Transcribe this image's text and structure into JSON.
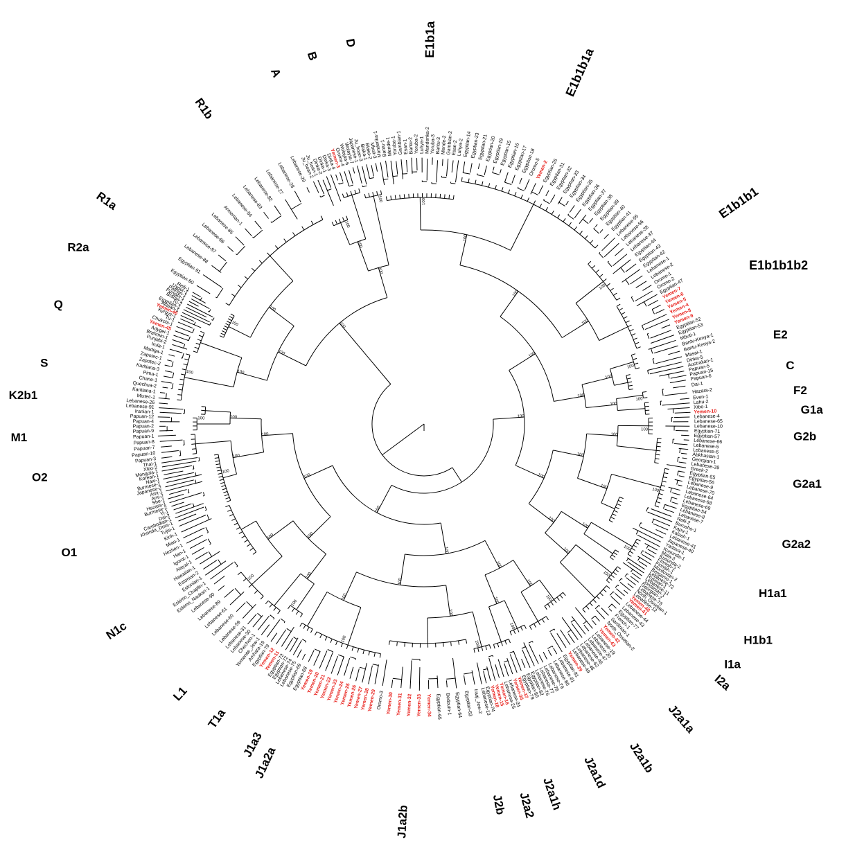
{
  "diagram": {
    "type": "circular-phylogenetic-tree",
    "highlight_color": "#e8211c",
    "line_color": "#000000",
    "haplogroups": [
      "E1b1a",
      "E1b1b1a",
      "E1b1b1",
      "E1b1b1b2",
      "E2",
      "C",
      "F2",
      "G1a",
      "G2b",
      "G2a1",
      "G2a2",
      "H1a1",
      "H1b1",
      "I1a",
      "I2a",
      "J2a1a",
      "J2a1b",
      "J2a1d",
      "J2a1h",
      "J2a2",
      "J2b",
      "J1a2b",
      "J1a2a",
      "J1a3",
      "T1a",
      "L1",
      "N1c",
      "O1",
      "O2",
      "M1",
      "K2b1",
      "S",
      "Q",
      "R2a",
      "R1a",
      "R1b",
      "A",
      "B",
      "D"
    ],
    "support_value": "100",
    "leaves": {
      "A": [
        "Ju_hoan-2",
        "Ju_hoan-1",
        "Dinka-2",
        "Dinka-1",
        "Dinka-3"
      ],
      "B": [
        "Dinka-4",
        "Yemen-3",
        "Oromo-4",
        "Wolayta-6",
        "Wolayta-7"
      ],
      "D": [
        "Japanese-1",
        "Ju_hoan-3",
        "Biaka-1",
        "Biaka-2",
        "Mbuti-3"
      ],
      "E1b1a": [
        "Mandenka-1",
        "Bantu-1",
        "Mende-1",
        "Yoruba-1",
        "Gambian-1",
        "Esan-1",
        "Bantu-2",
        "Yoruba-2",
        "Luhya-1",
        "Mandenka-2",
        "Yoruba-3",
        "Bantu-3",
        "Mende-2",
        "Gambian-2",
        "Esan-2",
        "Luhya-2"
      ],
      "E1b1b1a": [
        "Egyptian-14",
        "Egyptian-23",
        "Egyptian-21",
        "Egyptian-20",
        "Egyptian-19",
        "Egyptian-15",
        "Egyptian-16",
        "Egyptian-17",
        "Egyptian-18",
        "Oromo-5",
        "Yemen-2",
        "Egyptian-26",
        "Egyptian-31",
        "Egyptian-32",
        "Egyptian-33",
        "Egyptian-34",
        "Egyptian-35",
        "Egyptian-36",
        "Egyptian-37",
        "Egyptian-38",
        "Egyptian-39",
        "Egyptian-40",
        "Egyptian-41"
      ],
      "E1b1b1": [
        "Lebanese-55",
        "Lebanese-56",
        "Lebanese-38",
        "Lebanese-37",
        "Egyptian-44",
        "Egyptian-43",
        "Egyptian-42",
        "Lebanese-1",
        "Lebanese-2"
      ],
      "E1b1b1b2": [
        "Oromo-1",
        "Oromo-2",
        "Egyptian-47",
        "Yemen-7",
        "Yemen-6",
        "Yemen-5",
        "Yemen-4",
        "Yemen-8",
        "Yemen-9",
        "Egyptian-52",
        "Egyptian-53"
      ],
      "E2": [
        "Mbuti-1",
        "Bantu-Kenya-1",
        "Bantu-Kenya-2",
        "Masai-1"
      ],
      "C": [
        "Dinka-5",
        "Australian-1",
        "Papuan-5",
        "Papuan-15",
        "Papuan-6"
      ],
      "F2": [
        "Dai-1",
        "Hazara-2"
      ],
      "G1a": [
        "Even-1",
        "Lahu-2",
        "Xibo-1",
        "Yemen-10"
      ],
      "G2b": [
        "Lebanese-4",
        "Lebanese-65",
        "Lebanese-10",
        "Egyptian-71",
        "Egyptian-57"
      ],
      "G2a1": [
        "Lebanese-66",
        "Lebanese-5",
        "Lebanese-6",
        "Abkhasian-1",
        "Georgian-1",
        "Lebanese-39",
        "Greek-2"
      ],
      "G2a2": [
        "Egyptian-55",
        "Egyptian-56",
        "Lebanese-9",
        "Lebanese-70",
        "Lebanese-64",
        "Lebanese-68",
        "Lebanese-69",
        "Egyptian-54",
        "Lebanese-8",
        "Lebanese-7"
      ],
      "H1a1": [
        "Relli-2",
        "Burusho-1",
        "Kapu-1",
        "Kalash-1",
        "Lebanese-41",
        "Japanese-40",
        "Yadava-1",
        "Kusunda-1"
      ],
      "H1b1": [
        "Mala-3",
        "Kusunda-2",
        "Finnish-2",
        "Finnish-1",
        "Mordovian-2",
        "Bergamo-1"
      ],
      "I1a": [
        "Lebanese-72",
        "Russian-1",
        "Lebanese-11",
        "Jordanian-1"
      ],
      "I2a": [
        "Georgian-2",
        "Lebanese-73",
        "North_Ossetian-1",
        "Lebanese-12",
        "Yemen-40",
        "Yemen-41"
      ],
      "J2a1a": [
        "Lebanese-44",
        "Lebanese-43",
        "Egyptian-77",
        "French-1",
        "Sardinian-1",
        "North_Ossetian-2",
        "Yemen-42",
        "Yemen-43"
      ],
      "J2a1b": [
        "Lebanese-19",
        "Lebanese-20",
        "Lebanese-47",
        "Lebanese-46",
        "Lebanese-62",
        "Lebanese-48",
        "Lebanese-49"
      ],
      "J2a1d": [
        "Yemen-39",
        "Egyptian-81",
        "Lebanese-81",
        "Lebanese-80",
        "Lebanese-79"
      ],
      "J2a1h": [
        "Lebanese-78",
        "Lebanese-77",
        "Lebanese-76",
        "Egyptian-82",
        "Egyptian-80"
      ],
      "J2a2": [
        "Egyptian-79",
        "Yemen-37",
        "Yemen-36",
        "Lebanese-24",
        "Lebanese-25"
      ],
      "J2b": [
        "Yemen-16",
        "Yemen-15",
        "Yemen-18",
        "Egyptian-74",
        "Lebanese-13"
      ],
      "J1a2b": [
        "Iraqi_Jew-2",
        "Egyptian-63",
        "Egyptian-64",
        "Bedouin-1",
        "Egyptian-65",
        "Yemen-34",
        "Yemen-33",
        "Yemen-32",
        "Yemen-31",
        "Yemen-30",
        "Oromo-3"
      ],
      "J1a2a": [
        "Yemen-29",
        "Yemen-28",
        "Yemen-27",
        "Yemen-26",
        "Yemen-25",
        "Yemen-24",
        "Yemen-23",
        "Yemen-22",
        "Yemen-21",
        "Yemen-20",
        "Yemen-19",
        "Egyptian-68",
        "Egyptian-69"
      ],
      "J1a3": [
        "Lebanese-75",
        "Lebanese-74",
        "Egyptian-72",
        "Egyptian-73"
      ],
      "T1a": [
        "Yemen-11",
        "Yemen-12",
        "Egyptian-79",
        "Amhara-19"
      ],
      "L1": [
        "Yemenite_Jew-1",
        "Chechen-1",
        "Lebanese-30",
        "Lebanese-31"
      ],
      "N1c": [
        "Lebanese-59",
        "Lebanese-60",
        "Lebanese-61",
        "Lebanese-89",
        "Lebanese-90"
      ],
      "O1": [
        "Eskimo_Naukan-1",
        "Eskimo_Chaplin-1",
        "Estonian-1",
        "Estonian-2",
        "Hawaiian-1",
        "Atayal-1",
        "Igorot-1",
        "Han-1",
        "Hezhen-1",
        "Miao-1",
        "Kinh-1",
        "Tujia-1"
      ],
      "O2": [
        "Khonda_Dora-1",
        "Cambodian-1",
        "Dai-2",
        "Yi-1",
        "Burmese-2",
        "Hazara-1",
        "She-1",
        "Ami-2",
        "Ami-1",
        "Japanese-2",
        "Burmese-1",
        "Naxi-1",
        "Korean-1",
        "Mongola-1",
        "Xibo-2",
        "Thai-1"
      ],
      "M1": [
        "Papuan-3",
        "Papuan-10",
        "Papuan-7",
        "Papuan-8",
        "Papuan-1"
      ],
      "K2b1": [
        "Papuan-9",
        "Papuan-2",
        "Papuan-4",
        "Papuan-12"
      ],
      "S": [
        "Iranian-1",
        "Lebanese-91",
        "Lebanese-26"
      ],
      "Q": [
        "Mixtec-1",
        "Karitiana-1",
        "Quechua-2",
        "Chane-1",
        "Pima-1",
        "Karitiana-3",
        "Zapotec-2",
        "Zapotec-1",
        "Madiga-1",
        "Irula-1"
      ],
      "R2a": [
        "Punjabi-2",
        "Brahmin-1",
        "Adygei-1",
        "Yemen-45",
        "Chukchi-1",
        "Tu-1"
      ],
      "R1a": [
        "Kyrgyz-1",
        "Yemen-46",
        "Altaian-1",
        "Egyptian-1",
        "Tu-2",
        "Brahui-1",
        "Punjabi-1",
        "Pathan-1",
        "Uygur-1",
        "Relli-1"
      ],
      "R1b": [
        "Egyptian-90",
        "Egyptian-91",
        "Lebanese-88",
        "Lebanese-87",
        "Lebanese-86",
        "Lebanese-85",
        "Armenian-1",
        "Lebanese-84",
        "Lebanese-83",
        "Lebanese-82",
        "Lebanese-27",
        "Lebanese-28",
        "Lebanese-29"
      ]
    }
  }
}
